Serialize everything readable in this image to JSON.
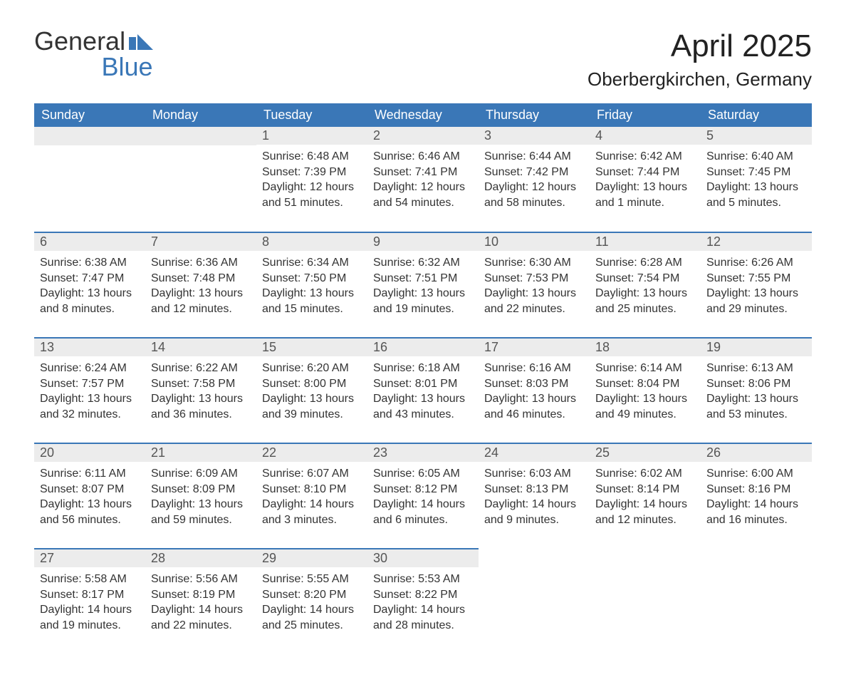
{
  "logo": {
    "word1": "General",
    "word2": "Blue"
  },
  "title": "April 2025",
  "location": "Oberbergkirchen, Germany",
  "colors": {
    "header_bg": "#3a77b7",
    "header_text": "#ffffff",
    "daynum_bg": "#ececec",
    "text": "#333333",
    "border": "#3a77b7"
  },
  "weekdays": [
    "Sunday",
    "Monday",
    "Tuesday",
    "Wednesday",
    "Thursday",
    "Friday",
    "Saturday"
  ],
  "weeks": [
    [
      {
        "n": "",
        "sunrise": "",
        "sunset": "",
        "daylight1": "",
        "daylight2": ""
      },
      {
        "n": "",
        "sunrise": "",
        "sunset": "",
        "daylight1": "",
        "daylight2": ""
      },
      {
        "n": "1",
        "sunrise": "Sunrise: 6:48 AM",
        "sunset": "Sunset: 7:39 PM",
        "daylight1": "Daylight: 12 hours",
        "daylight2": "and 51 minutes."
      },
      {
        "n": "2",
        "sunrise": "Sunrise: 6:46 AM",
        "sunset": "Sunset: 7:41 PM",
        "daylight1": "Daylight: 12 hours",
        "daylight2": "and 54 minutes."
      },
      {
        "n": "3",
        "sunrise": "Sunrise: 6:44 AM",
        "sunset": "Sunset: 7:42 PM",
        "daylight1": "Daylight: 12 hours",
        "daylight2": "and 58 minutes."
      },
      {
        "n": "4",
        "sunrise": "Sunrise: 6:42 AM",
        "sunset": "Sunset: 7:44 PM",
        "daylight1": "Daylight: 13 hours",
        "daylight2": "and 1 minute."
      },
      {
        "n": "5",
        "sunrise": "Sunrise: 6:40 AM",
        "sunset": "Sunset: 7:45 PM",
        "daylight1": "Daylight: 13 hours",
        "daylight2": "and 5 minutes."
      }
    ],
    [
      {
        "n": "6",
        "sunrise": "Sunrise: 6:38 AM",
        "sunset": "Sunset: 7:47 PM",
        "daylight1": "Daylight: 13 hours",
        "daylight2": "and 8 minutes."
      },
      {
        "n": "7",
        "sunrise": "Sunrise: 6:36 AM",
        "sunset": "Sunset: 7:48 PM",
        "daylight1": "Daylight: 13 hours",
        "daylight2": "and 12 minutes."
      },
      {
        "n": "8",
        "sunrise": "Sunrise: 6:34 AM",
        "sunset": "Sunset: 7:50 PM",
        "daylight1": "Daylight: 13 hours",
        "daylight2": "and 15 minutes."
      },
      {
        "n": "9",
        "sunrise": "Sunrise: 6:32 AM",
        "sunset": "Sunset: 7:51 PM",
        "daylight1": "Daylight: 13 hours",
        "daylight2": "and 19 minutes."
      },
      {
        "n": "10",
        "sunrise": "Sunrise: 6:30 AM",
        "sunset": "Sunset: 7:53 PM",
        "daylight1": "Daylight: 13 hours",
        "daylight2": "and 22 minutes."
      },
      {
        "n": "11",
        "sunrise": "Sunrise: 6:28 AM",
        "sunset": "Sunset: 7:54 PM",
        "daylight1": "Daylight: 13 hours",
        "daylight2": "and 25 minutes."
      },
      {
        "n": "12",
        "sunrise": "Sunrise: 6:26 AM",
        "sunset": "Sunset: 7:55 PM",
        "daylight1": "Daylight: 13 hours",
        "daylight2": "and 29 minutes."
      }
    ],
    [
      {
        "n": "13",
        "sunrise": "Sunrise: 6:24 AM",
        "sunset": "Sunset: 7:57 PM",
        "daylight1": "Daylight: 13 hours",
        "daylight2": "and 32 minutes."
      },
      {
        "n": "14",
        "sunrise": "Sunrise: 6:22 AM",
        "sunset": "Sunset: 7:58 PM",
        "daylight1": "Daylight: 13 hours",
        "daylight2": "and 36 minutes."
      },
      {
        "n": "15",
        "sunrise": "Sunrise: 6:20 AM",
        "sunset": "Sunset: 8:00 PM",
        "daylight1": "Daylight: 13 hours",
        "daylight2": "and 39 minutes."
      },
      {
        "n": "16",
        "sunrise": "Sunrise: 6:18 AM",
        "sunset": "Sunset: 8:01 PM",
        "daylight1": "Daylight: 13 hours",
        "daylight2": "and 43 minutes."
      },
      {
        "n": "17",
        "sunrise": "Sunrise: 6:16 AM",
        "sunset": "Sunset: 8:03 PM",
        "daylight1": "Daylight: 13 hours",
        "daylight2": "and 46 minutes."
      },
      {
        "n": "18",
        "sunrise": "Sunrise: 6:14 AM",
        "sunset": "Sunset: 8:04 PM",
        "daylight1": "Daylight: 13 hours",
        "daylight2": "and 49 minutes."
      },
      {
        "n": "19",
        "sunrise": "Sunrise: 6:13 AM",
        "sunset": "Sunset: 8:06 PM",
        "daylight1": "Daylight: 13 hours",
        "daylight2": "and 53 minutes."
      }
    ],
    [
      {
        "n": "20",
        "sunrise": "Sunrise: 6:11 AM",
        "sunset": "Sunset: 8:07 PM",
        "daylight1": "Daylight: 13 hours",
        "daylight2": "and 56 minutes."
      },
      {
        "n": "21",
        "sunrise": "Sunrise: 6:09 AM",
        "sunset": "Sunset: 8:09 PM",
        "daylight1": "Daylight: 13 hours",
        "daylight2": "and 59 minutes."
      },
      {
        "n": "22",
        "sunrise": "Sunrise: 6:07 AM",
        "sunset": "Sunset: 8:10 PM",
        "daylight1": "Daylight: 14 hours",
        "daylight2": "and 3 minutes."
      },
      {
        "n": "23",
        "sunrise": "Sunrise: 6:05 AM",
        "sunset": "Sunset: 8:12 PM",
        "daylight1": "Daylight: 14 hours",
        "daylight2": "and 6 minutes."
      },
      {
        "n": "24",
        "sunrise": "Sunrise: 6:03 AM",
        "sunset": "Sunset: 8:13 PM",
        "daylight1": "Daylight: 14 hours",
        "daylight2": "and 9 minutes."
      },
      {
        "n": "25",
        "sunrise": "Sunrise: 6:02 AM",
        "sunset": "Sunset: 8:14 PM",
        "daylight1": "Daylight: 14 hours",
        "daylight2": "and 12 minutes."
      },
      {
        "n": "26",
        "sunrise": "Sunrise: 6:00 AM",
        "sunset": "Sunset: 8:16 PM",
        "daylight1": "Daylight: 14 hours",
        "daylight2": "and 16 minutes."
      }
    ],
    [
      {
        "n": "27",
        "sunrise": "Sunrise: 5:58 AM",
        "sunset": "Sunset: 8:17 PM",
        "daylight1": "Daylight: 14 hours",
        "daylight2": "and 19 minutes."
      },
      {
        "n": "28",
        "sunrise": "Sunrise: 5:56 AM",
        "sunset": "Sunset: 8:19 PM",
        "daylight1": "Daylight: 14 hours",
        "daylight2": "and 22 minutes."
      },
      {
        "n": "29",
        "sunrise": "Sunrise: 5:55 AM",
        "sunset": "Sunset: 8:20 PM",
        "daylight1": "Daylight: 14 hours",
        "daylight2": "and 25 minutes."
      },
      {
        "n": "30",
        "sunrise": "Sunrise: 5:53 AM",
        "sunset": "Sunset: 8:22 PM",
        "daylight1": "Daylight: 14 hours",
        "daylight2": "and 28 minutes."
      },
      {
        "n": "",
        "sunrise": "",
        "sunset": "",
        "daylight1": "",
        "daylight2": ""
      },
      {
        "n": "",
        "sunrise": "",
        "sunset": "",
        "daylight1": "",
        "daylight2": ""
      },
      {
        "n": "",
        "sunrise": "",
        "sunset": "",
        "daylight1": "",
        "daylight2": ""
      }
    ]
  ]
}
